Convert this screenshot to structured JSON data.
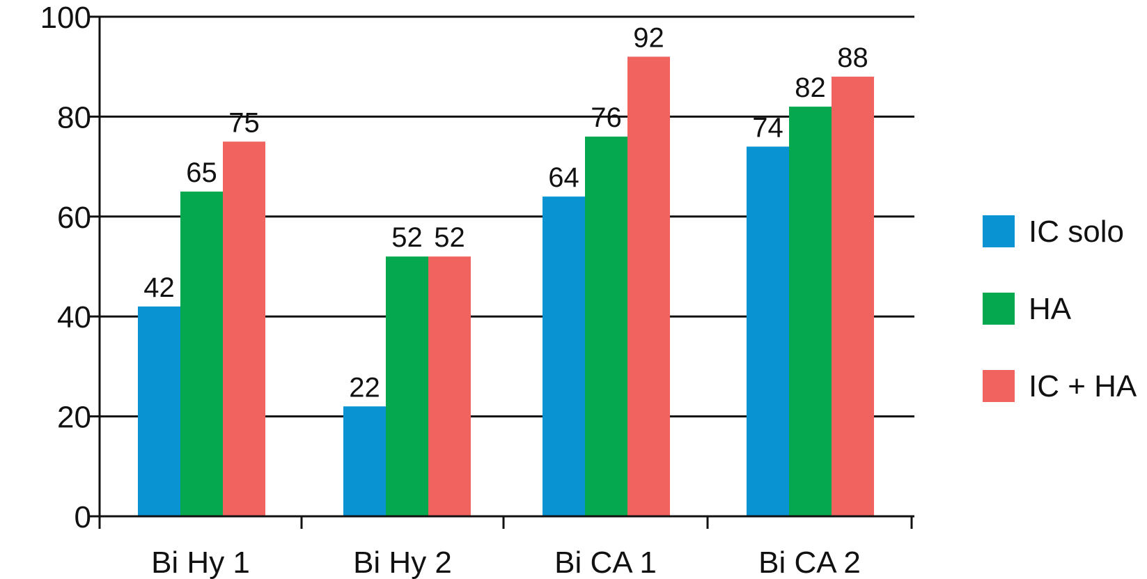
{
  "chart_data": {
    "type": "bar",
    "categories": [
      "Bi Hy 1",
      "Bi Hy 2",
      "Bi CA 1",
      "Bi CA 2"
    ],
    "series": [
      {
        "name": "IC solo",
        "color": "#0a93d3",
        "values": [
          42,
          22,
          64,
          74
        ]
      },
      {
        "name": "HA",
        "color": "#06a84f",
        "values": [
          65,
          52,
          76,
          82
        ]
      },
      {
        "name": "IC + HA",
        "color": "#f0635f",
        "values": [
          75,
          52,
          92,
          88
        ]
      }
    ],
    "ylim": [
      0,
      100
    ],
    "yticks": [
      0,
      20,
      40,
      60,
      80,
      100
    ],
    "grid": true,
    "legend": "right",
    "title": "",
    "xlabel": "",
    "ylabel": ""
  }
}
